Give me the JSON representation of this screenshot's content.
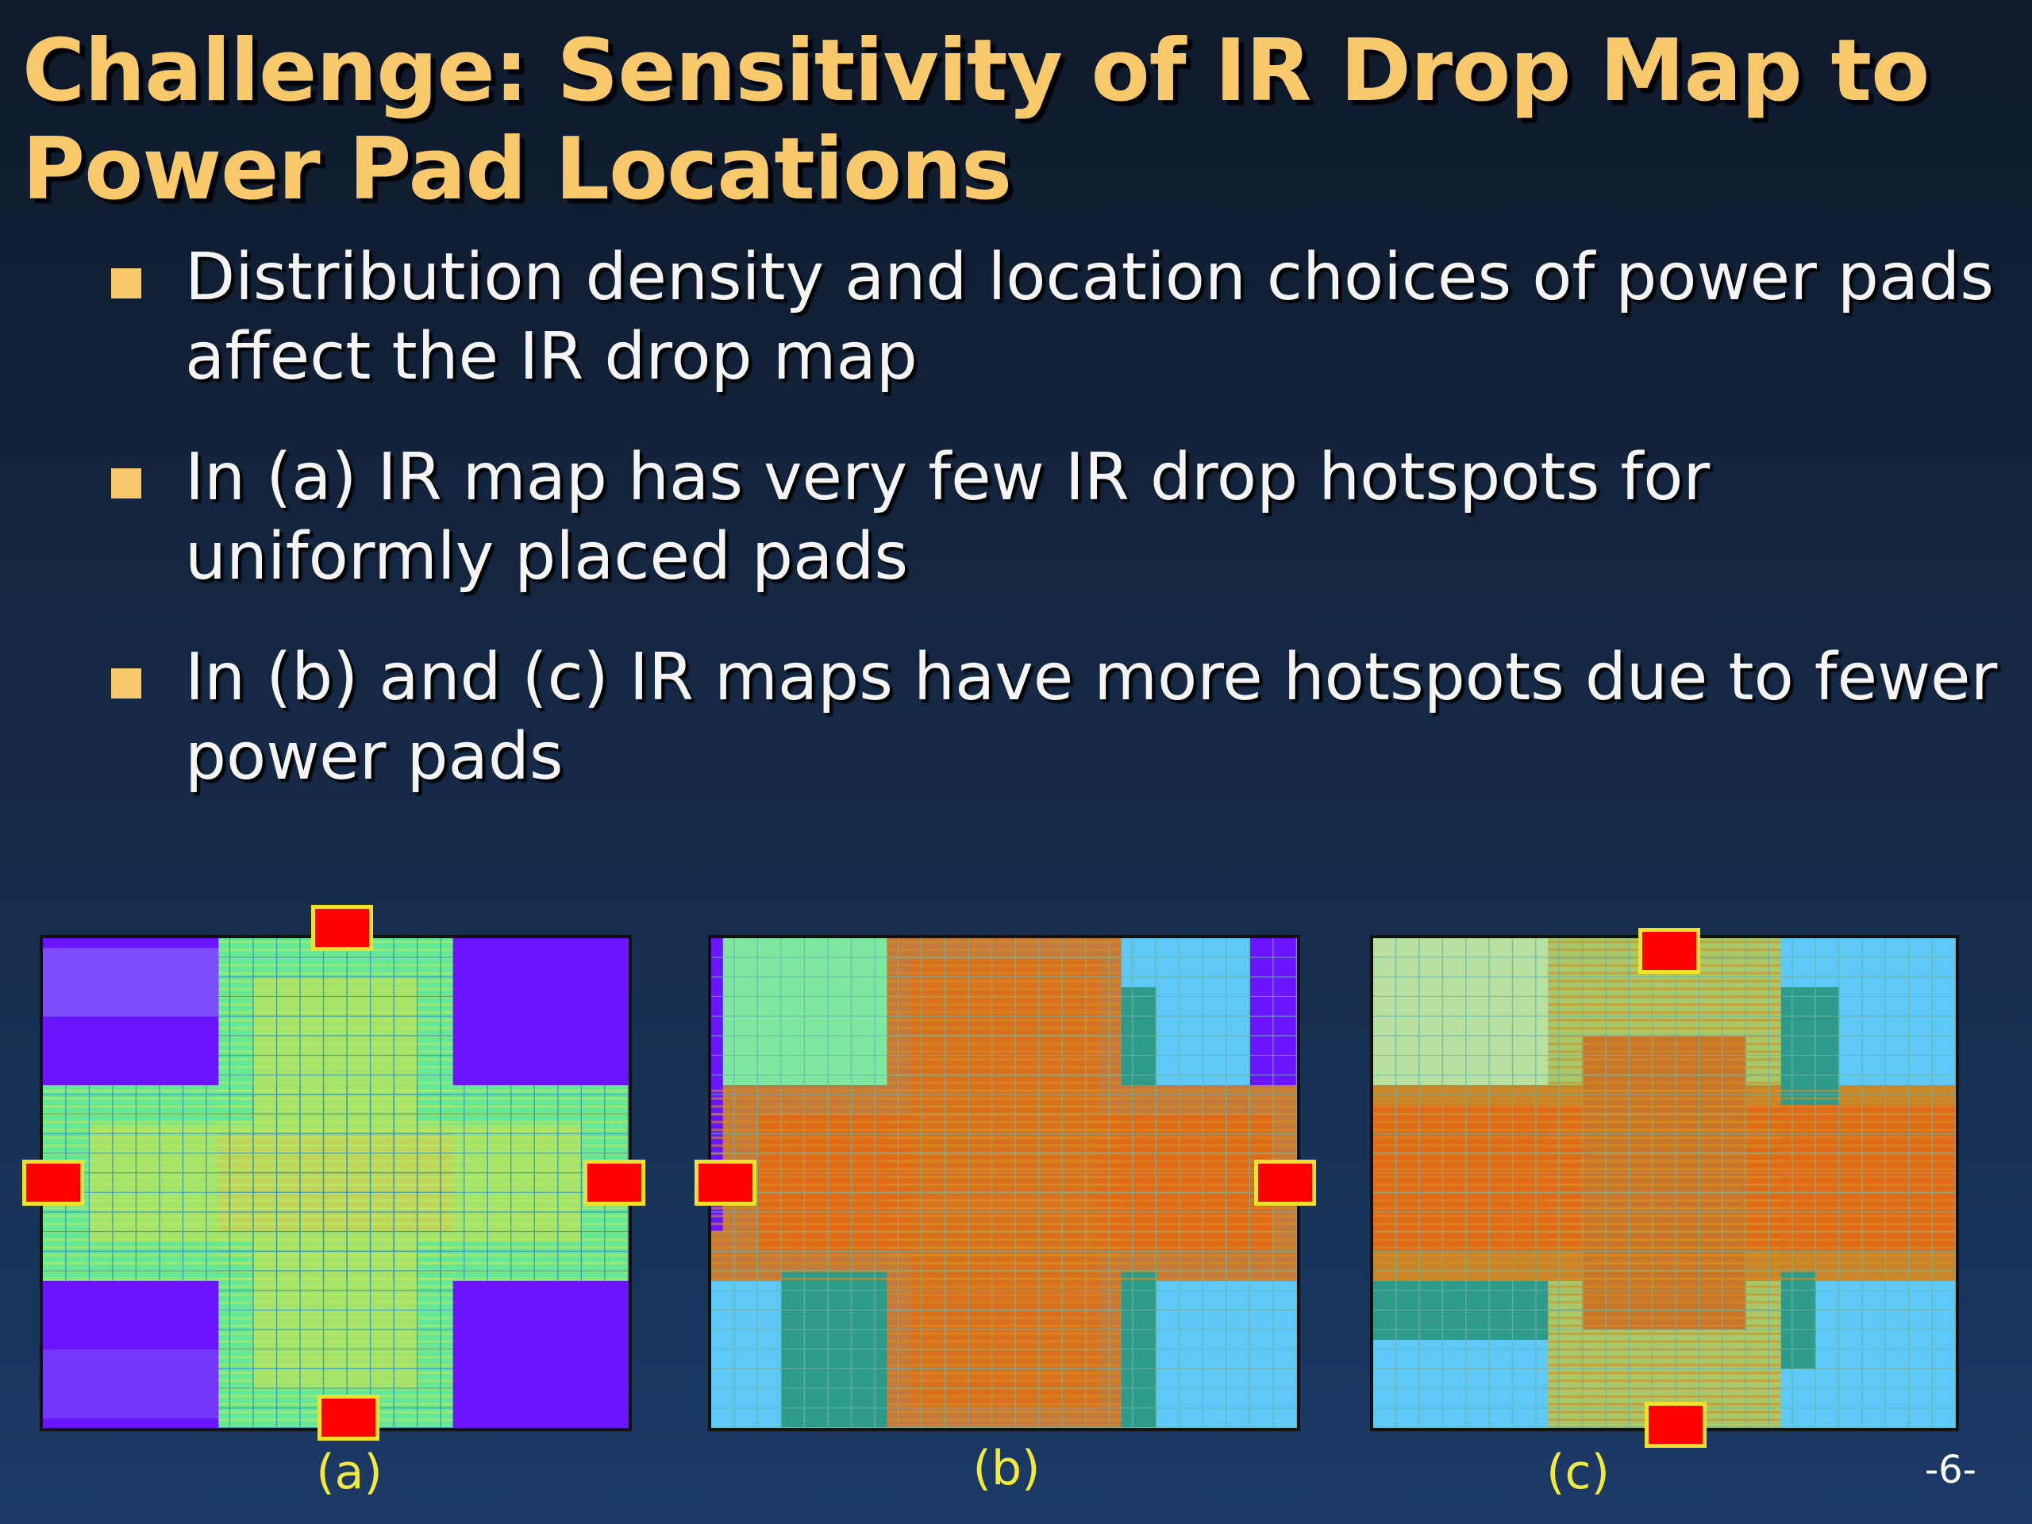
{
  "title": {
    "line1": "Challenge: Sensitivity of IR Drop Map to",
    "line2": "Power Pad Locations"
  },
  "bullets": [
    {
      "line1": "Distribution density and location choices of power pads",
      "line2": "affect the IR drop map"
    },
    {
      "line1": "In (a) IR map has very few IR drop hotspots for",
      "line2": "uniformly placed pads"
    },
    {
      "line1": "In (b) and (c) IR maps have more hotspots due to fewer",
      "line2": "power pads"
    }
  ],
  "figures": [
    {
      "caption": "(a)"
    },
    {
      "caption": "(b)"
    },
    {
      "caption": "(c)"
    }
  ],
  "page_number": "-6-",
  "colors": {
    "title": "#f7c96a",
    "bullet_marker": "#f7c96a",
    "caption": "#f2ea3a",
    "pad_fill": "#ff0000",
    "pad_border": "#f2e12a"
  }
}
